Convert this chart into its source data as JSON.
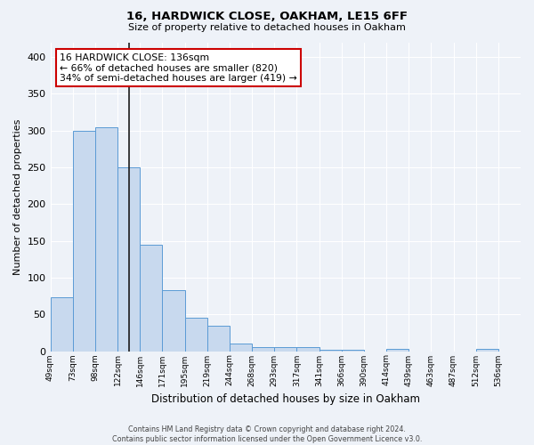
{
  "title1": "16, HARDWICK CLOSE, OAKHAM, LE15 6FF",
  "title2": "Size of property relative to detached houses in Oakham",
  "xlabel": "Distribution of detached houses by size in Oakham",
  "ylabel": "Number of detached properties",
  "bin_labels": [
    "49sqm",
    "73sqm",
    "98sqm",
    "122sqm",
    "146sqm",
    "171sqm",
    "195sqm",
    "219sqm",
    "244sqm",
    "268sqm",
    "293sqm",
    "317sqm",
    "341sqm",
    "366sqm",
    "390sqm",
    "414sqm",
    "439sqm",
    "463sqm",
    "487sqm",
    "512sqm",
    "536sqm"
  ],
  "bar_values": [
    73,
    300,
    305,
    250,
    145,
    83,
    45,
    34,
    10,
    6,
    6,
    6,
    2,
    2,
    0,
    3,
    0,
    0,
    0,
    3,
    0
  ],
  "bar_color": "#c8d9ee",
  "bar_edge_color": "#5b9bd5",
  "property_bin_index": 3.5,
  "vline_color": "#1a1a1a",
  "annotation_text": "16 HARDWICK CLOSE: 136sqm\n← 66% of detached houses are smaller (820)\n34% of semi-detached houses are larger (419) →",
  "annotation_box_color": "white",
  "annotation_box_edge": "#cc0000",
  "ylim": [
    0,
    420
  ],
  "yticks": [
    0,
    50,
    100,
    150,
    200,
    250,
    300,
    350,
    400
  ],
  "bg_color": "#eef2f8",
  "grid_color": "#ffffff",
  "footer": "Contains HM Land Registry data © Crown copyright and database right 2024.\nContains public sector information licensed under the Open Government Licence v3.0."
}
